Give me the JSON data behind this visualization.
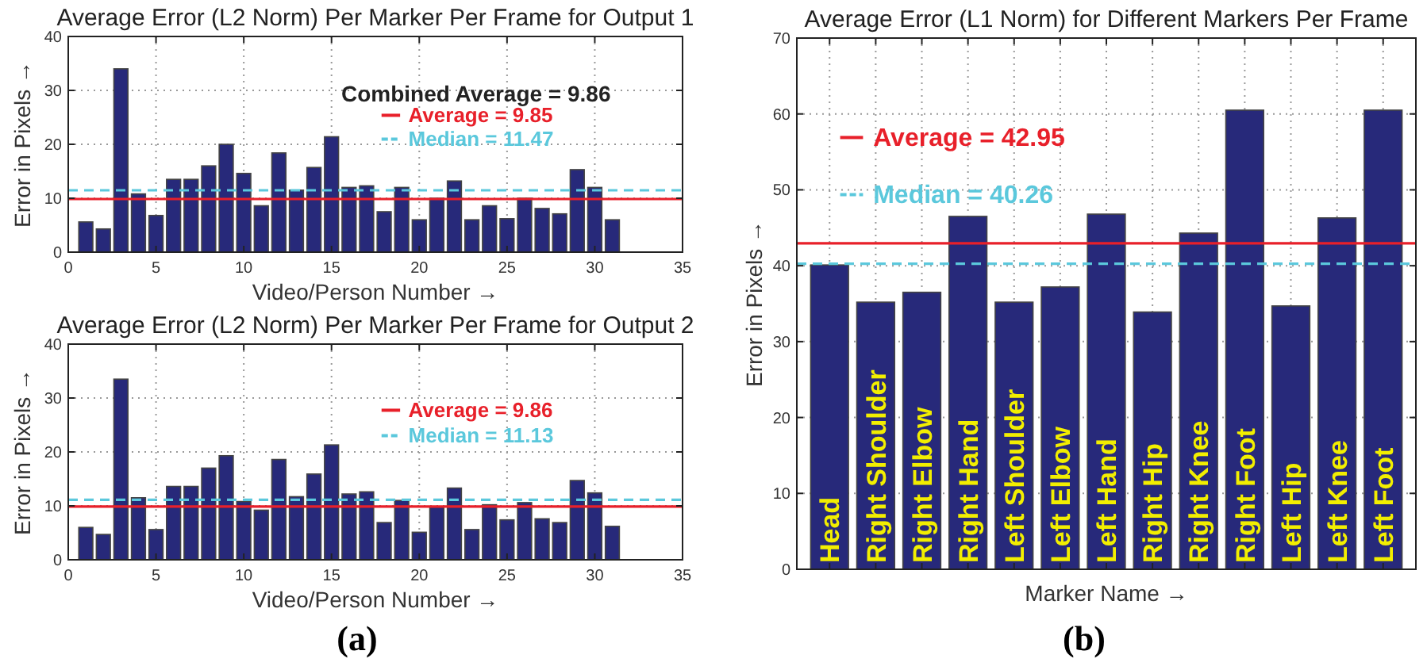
{
  "chart_data": [
    {
      "type": "bar",
      "title": "Average Error (L2 Norm) Per Marker Per Frame for Output 1",
      "xlabel": "Video/Person Number →",
      "ylabel": "Error in Pixels →",
      "x": [
        1,
        2,
        3,
        4,
        5,
        6,
        7,
        8,
        9,
        10,
        11,
        12,
        13,
        14,
        15,
        16,
        17,
        18,
        19,
        20,
        21,
        22,
        23,
        24,
        25,
        26,
        27,
        28,
        29,
        30,
        31
      ],
      "values": [
        5.6,
        4.3,
        34,
        10.8,
        6.8,
        13.5,
        13.5,
        16,
        20,
        14.6,
        8.6,
        18.4,
        11.5,
        15.7,
        21.4,
        12,
        12.3,
        7.5,
        12,
        6,
        10,
        13.2,
        6,
        8.6,
        6.2,
        10,
        8.1,
        7.1,
        15.3,
        12,
        6
      ],
      "color": "#27297a",
      "xlim": [
        0,
        35
      ],
      "xticks": [
        0,
        5,
        10,
        15,
        20,
        25,
        30,
        35
      ],
      "ylim": [
        0,
        40
      ],
      "yticks": [
        0,
        10,
        20,
        30,
        40
      ],
      "grid": true,
      "ref_lines": [
        {
          "axis": "y",
          "value": 9.85,
          "label": "Average = 9.85",
          "color": "#e8202a",
          "line_style": "solid"
        },
        {
          "axis": "y",
          "value": 11.47,
          "label": "Median = 11.47",
          "color": "#5bc8dc",
          "line_style": "dashed"
        }
      ],
      "annotations": [
        "Combined Average = 9.86"
      ],
      "legend": "top"
    },
    {
      "type": "bar",
      "title": "Average Error (L2 Norm) Per Marker Per Frame for Output 2",
      "xlabel": "Video/Person Number →",
      "ylabel": "Error in Pixels →",
      "x": [
        1,
        2,
        3,
        4,
        5,
        6,
        7,
        8,
        9,
        10,
        11,
        12,
        13,
        14,
        15,
        16,
        17,
        18,
        19,
        20,
        21,
        22,
        23,
        24,
        25,
        26,
        27,
        28,
        29,
        30,
        31
      ],
      "values": [
        6,
        4.7,
        33.5,
        11.5,
        5.6,
        13.6,
        13.6,
        17,
        19.3,
        10.8,
        9.2,
        18.6,
        11.7,
        15.9,
        21.3,
        12.2,
        12.6,
        6.9,
        11,
        5.1,
        9.8,
        13.3,
        5.6,
        10.2,
        7.4,
        10.6,
        7.6,
        6.9,
        14.7,
        12.4,
        6.2
      ],
      "color": "#27297a",
      "xlim": [
        0,
        35
      ],
      "xticks": [
        0,
        5,
        10,
        15,
        20,
        25,
        30,
        35
      ],
      "ylim": [
        0,
        40
      ],
      "yticks": [
        0,
        10,
        20,
        30,
        40
      ],
      "grid": true,
      "ref_lines": [
        {
          "axis": "y",
          "value": 9.86,
          "label": "Average = 9.86",
          "color": "#e8202a",
          "line_style": "solid"
        },
        {
          "axis": "y",
          "value": 11.13,
          "label": "Median = 11.13",
          "color": "#5bc8dc",
          "line_style": "dashed"
        }
      ],
      "annotations": [
        "(a)"
      ],
      "legend": "top"
    },
    {
      "type": "bar",
      "title": "Average Error (L1 Norm) for Different Markers Per Frame",
      "xlabel": "Marker Name →",
      "ylabel": "Error in Pixels →",
      "categories": [
        "Head",
        "Right Shoulder",
        "Right Elbow",
        "Right Hand",
        "Left Shoulder",
        "Left Elbow",
        "Left Hand",
        "Right Hip",
        "Right Knee",
        "Right Foot",
        "Left Hip",
        "Left Knee",
        "Left Foot"
      ],
      "values": [
        40.1,
        35.2,
        36.5,
        46.5,
        35.2,
        37.2,
        46.8,
        33.9,
        44.3,
        60.5,
        34.7,
        46.3,
        60.5
      ],
      "color": "#27297a",
      "ylim": [
        0,
        70
      ],
      "yticks": [
        0,
        10,
        20,
        30,
        40,
        50,
        60,
        70
      ],
      "grid": true,
      "ref_lines": [
        {
          "axis": "y",
          "value": 42.95,
          "label": "Average = 42.95",
          "color": "#e8202a",
          "line_style": "solid"
        },
        {
          "axis": "y",
          "value": 40.26,
          "label": "Median = 40.26",
          "color": "#5bc8dc",
          "line_style": "dashed"
        }
      ],
      "annotations": [
        "(b)"
      ],
      "legend": "top left"
    }
  ]
}
